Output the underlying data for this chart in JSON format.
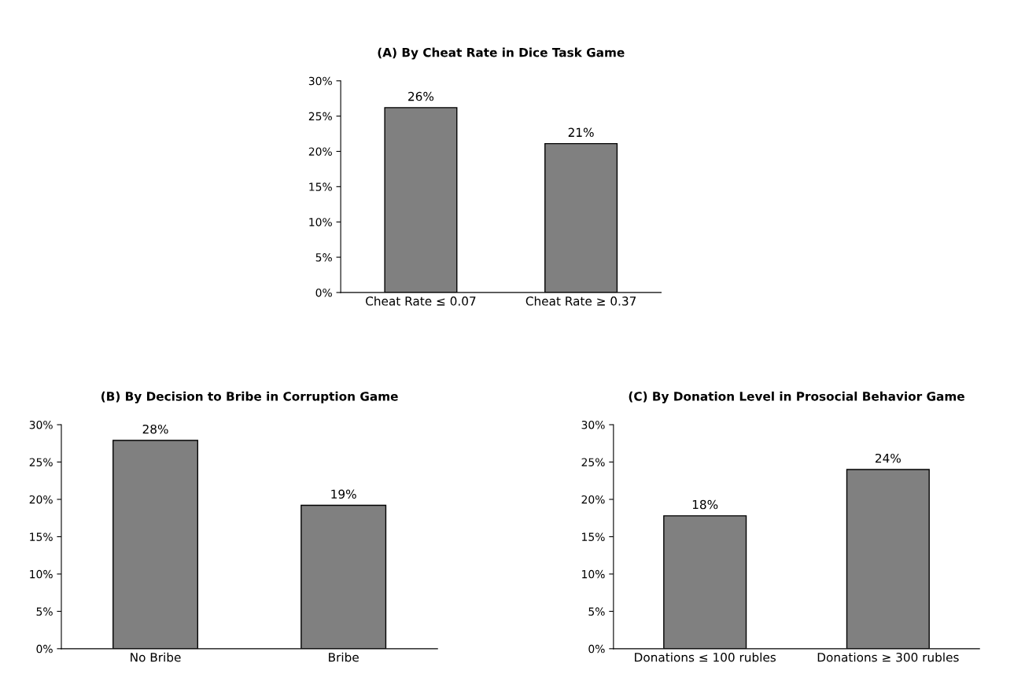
{
  "chart_data": [
    {
      "type": "bar",
      "title": "(A) By Cheat Rate in Dice Task Game",
      "categories": [
        "Cheat Rate ≤ 0.07",
        "Cheat Rate ≥ 0.37"
      ],
      "values": [
        26.2,
        21.1
      ],
      "value_labels": [
        "26%",
        "21%"
      ],
      "color": "#808080",
      "ylim": [
        0,
        30
      ],
      "yticks": [
        {
          "value": 0,
          "label": "0%"
        },
        {
          "value": 5,
          "label": "5%"
        },
        {
          "value": 10,
          "label": "10%"
        },
        {
          "value": 15,
          "label": "15%"
        },
        {
          "value": 20,
          "label": "20%"
        },
        {
          "value": 25,
          "label": "25%"
        },
        {
          "value": 30,
          "label": "30%"
        }
      ]
    },
    {
      "type": "bar",
      "title": "(B) By Decision to Bribe in Corruption Game",
      "categories": [
        "No Bribe",
        "Bribe"
      ],
      "values": [
        27.9,
        19.2
      ],
      "value_labels": [
        "28%",
        "19%"
      ],
      "color": "#808080",
      "ylim": [
        0,
        30
      ],
      "yticks": [
        {
          "value": 0,
          "label": "0%"
        },
        {
          "value": 5,
          "label": "5%"
        },
        {
          "value": 10,
          "label": "10%"
        },
        {
          "value": 15,
          "label": "15%"
        },
        {
          "value": 20,
          "label": "20%"
        },
        {
          "value": 25,
          "label": "25%"
        },
        {
          "value": 30,
          "label": "30%"
        }
      ]
    },
    {
      "type": "bar",
      "title": "(C) By Donation Level in Prosocial Behavior Game",
      "categories": [
        "Donations ≤ 100 rubles",
        "Donations ≥ 300 rubles"
      ],
      "values": [
        17.8,
        24.0
      ],
      "value_labels": [
        "18%",
        "24%"
      ],
      "color": "#808080",
      "ylim": [
        0,
        30
      ],
      "yticks": [
        {
          "value": 0,
          "label": "0%"
        },
        {
          "value": 5,
          "label": "5%"
        },
        {
          "value": 10,
          "label": "10%"
        },
        {
          "value": 15,
          "label": "15%"
        },
        {
          "value": 20,
          "label": "20%"
        },
        {
          "value": 25,
          "label": "25%"
        },
        {
          "value": 30,
          "label": "30%"
        }
      ]
    }
  ]
}
